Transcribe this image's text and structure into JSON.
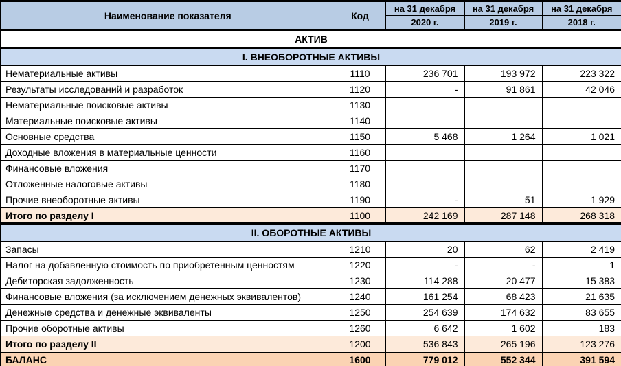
{
  "colors": {
    "header_bg": "#b8cce4",
    "band_bg": "#c9daf1",
    "total_bg": "#fdeada",
    "grand_bg": "#fbd3b3",
    "border": "#000000",
    "text": "#000000"
  },
  "header": {
    "name_label": "Наименование показателя",
    "code_label": "Код",
    "periods": [
      {
        "line1": "на 31 декабря",
        "line2": "2020 г."
      },
      {
        "line1": "на 31 декабря",
        "line2": "2019 г."
      },
      {
        "line1": "на 31 декабря",
        "line2": "2018 г."
      }
    ]
  },
  "table": {
    "rows": [
      {
        "type": "group",
        "label": "АКТИВ"
      },
      {
        "type": "band",
        "label": "I. ВНЕОБОРОТНЫЕ АКТИВЫ"
      },
      {
        "type": "data",
        "name": "Нематериальные активы",
        "code": "1110",
        "values": [
          "236 701",
          "193 972",
          "223 322"
        ]
      },
      {
        "type": "data",
        "name": "Результаты исследований и разработок",
        "code": "1120",
        "values": [
          "-",
          "91 861",
          "42 046"
        ]
      },
      {
        "type": "data",
        "name": "Нематериальные поисковые активы",
        "code": "1130",
        "values": [
          "",
          "",
          ""
        ]
      },
      {
        "type": "data",
        "name": "Материальные поисковые активы",
        "code": "1140",
        "values": [
          "",
          "",
          ""
        ]
      },
      {
        "type": "data",
        "name": "Основные средства",
        "code": "1150",
        "values": [
          "5 468",
          "1 264",
          "1 021"
        ]
      },
      {
        "type": "data",
        "name": "Доходные вложения в материальные ценности",
        "code": "1160",
        "values": [
          "",
          "",
          ""
        ]
      },
      {
        "type": "data",
        "name": "Финансовые вложения",
        "code": "1170",
        "values": [
          "",
          "",
          ""
        ]
      },
      {
        "type": "data",
        "name": "Отложенные налоговые активы",
        "code": "1180",
        "values": [
          "",
          "",
          ""
        ]
      },
      {
        "type": "data",
        "name": "Прочие внеоборотные активы",
        "code": "1190",
        "values": [
          "-",
          "51",
          "1 929"
        ]
      },
      {
        "type": "total",
        "name": "Итого по разделу I",
        "code": "1100",
        "values": [
          "242 169",
          "287 148",
          "268 318"
        ]
      },
      {
        "type": "band",
        "label": "II. ОБОРОТНЫЕ АКТИВЫ"
      },
      {
        "type": "data",
        "name": "Запасы",
        "code": "1210",
        "values": [
          "20",
          "62",
          "2 419"
        ]
      },
      {
        "type": "data",
        "name": "Налог на добавленную стоимость по приобретенным ценностям",
        "code": "1220",
        "values": [
          "-",
          "-",
          "1"
        ]
      },
      {
        "type": "data",
        "name": "Дебиторская задолженность",
        "code": "1230",
        "values": [
          "114 288",
          "20 477",
          "15 383"
        ]
      },
      {
        "type": "data",
        "name": "Финансовые вложения (за исключением денежных эквивалентов)",
        "code": "1240",
        "values": [
          "161 254",
          "68 423",
          "21 635"
        ]
      },
      {
        "type": "data",
        "name": "Денежные средства и денежные эквиваленты",
        "code": "1250",
        "values": [
          "254 639",
          "174 632",
          "83 655"
        ]
      },
      {
        "type": "data",
        "name": "Прочие оборотные активы",
        "code": "1260",
        "values": [
          "6 642",
          "1 602",
          "183"
        ]
      },
      {
        "type": "total",
        "name": "Итого по разделу II",
        "code": "1200",
        "values": [
          "536 843",
          "265 196",
          "123 276"
        ]
      },
      {
        "type": "grand",
        "name": "БАЛАНС",
        "code": "1600",
        "values": [
          "779 012",
          "552 344",
          "391 594"
        ]
      }
    ]
  }
}
